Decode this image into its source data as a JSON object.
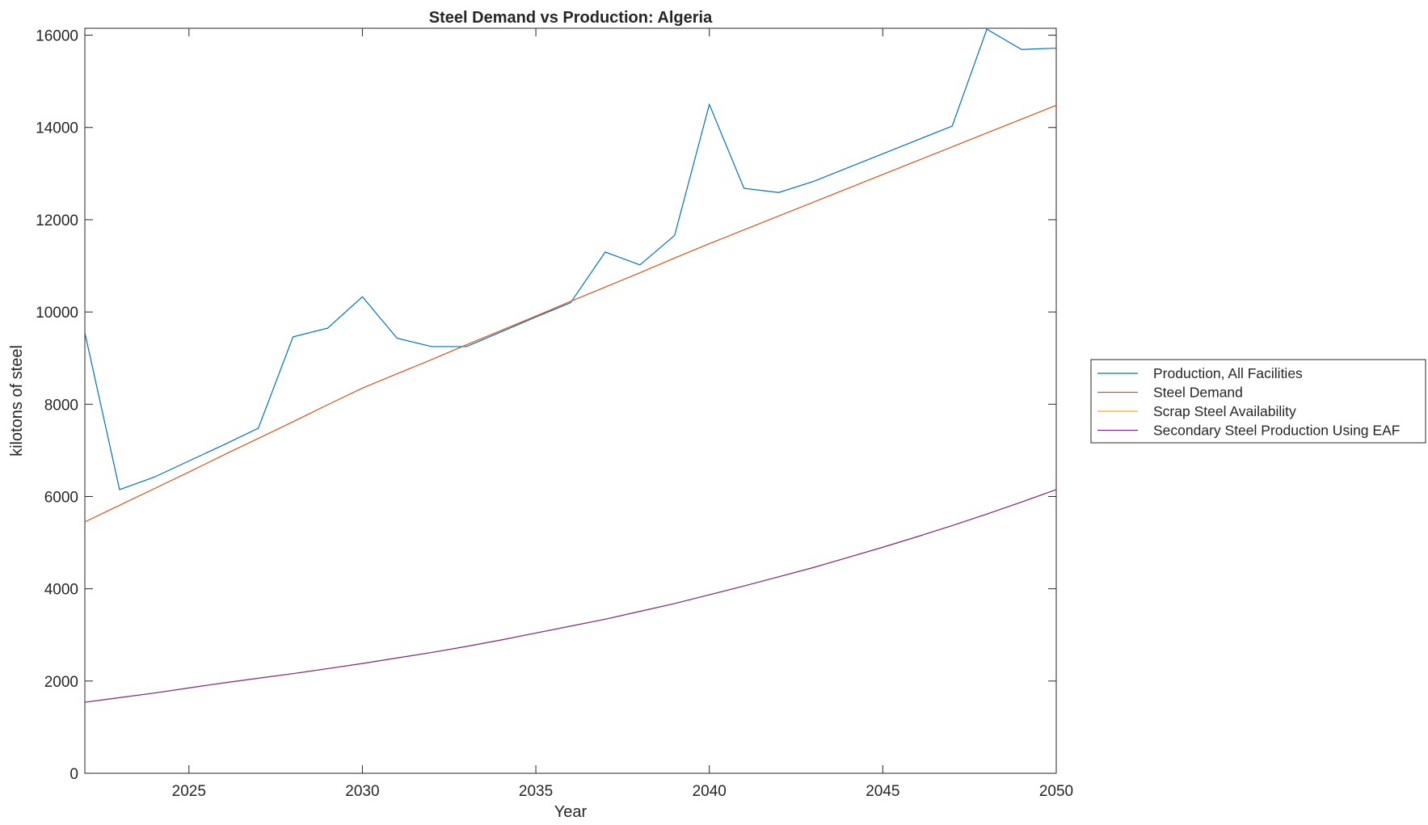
{
  "chart_data": {
    "type": "line",
    "title": "Steel Demand vs Production: Algeria",
    "xlabel": "Year",
    "ylabel": "kilotons of steel",
    "xlim": [
      2022,
      2050
    ],
    "ylim": [
      0,
      16150
    ],
    "xticks": [
      2025,
      2030,
      2035,
      2040,
      2045,
      2050
    ],
    "yticks": [
      0,
      2000,
      4000,
      6000,
      8000,
      10000,
      12000,
      14000,
      16000
    ],
    "grid": false,
    "legend_position": "outside-right",
    "x": [
      2022,
      2023,
      2024,
      2025,
      2026,
      2027,
      2028,
      2029,
      2030,
      2031,
      2032,
      2033,
      2034,
      2035,
      2036,
      2037,
      2038,
      2039,
      2040,
      2041,
      2042,
      2043,
      2044,
      2045,
      2046,
      2047,
      2048,
      2049,
      2050
    ],
    "series": [
      {
        "name": "Production, All Facilities",
        "color": "#0072BD",
        "values": [
          9550,
          6150,
          6420,
          6770,
          7120,
          7480,
          9460,
          9650,
          10330,
          9430,
          9250,
          9250,
          9570,
          9890,
          10200,
          11300,
          11020,
          11660,
          14500,
          12680,
          12590,
          12830,
          13130,
          13430,
          13730,
          14030,
          16130,
          15690,
          15720
        ]
      },
      {
        "name": "Steel Demand",
        "color": "#D95319",
        "values": [
          5450,
          5810,
          6170,
          6530,
          6900,
          7260,
          7620,
          7990,
          8350,
          8660,
          8970,
          9290,
          9600,
          9910,
          10230,
          10540,
          10850,
          11170,
          11480,
          11780,
          12080,
          12380,
          12680,
          12980,
          13280,
          13580,
          13880,
          14180,
          14480
        ]
      },
      {
        "name": "Scrap Steel Availability",
        "color": "#EDB120",
        "values": [
          1540,
          1640,
          1740,
          1850,
          1960,
          2060,
          2160,
          2270,
          2380,
          2500,
          2620,
          2750,
          2890,
          3040,
          3190,
          3340,
          3510,
          3680,
          3870,
          4060,
          4260,
          4460,
          4680,
          4900,
          5130,
          5370,
          5620,
          5880,
          6150
        ]
      },
      {
        "name": "Secondary Steel Production Using EAF",
        "color": "#7E2F8E",
        "values": [
          1540,
          1640,
          1740,
          1850,
          1960,
          2060,
          2160,
          2270,
          2380,
          2500,
          2620,
          2750,
          2890,
          3040,
          3190,
          3340,
          3510,
          3680,
          3870,
          4060,
          4260,
          4460,
          4680,
          4900,
          5130,
          5370,
          5620,
          5880,
          6150
        ]
      }
    ]
  }
}
